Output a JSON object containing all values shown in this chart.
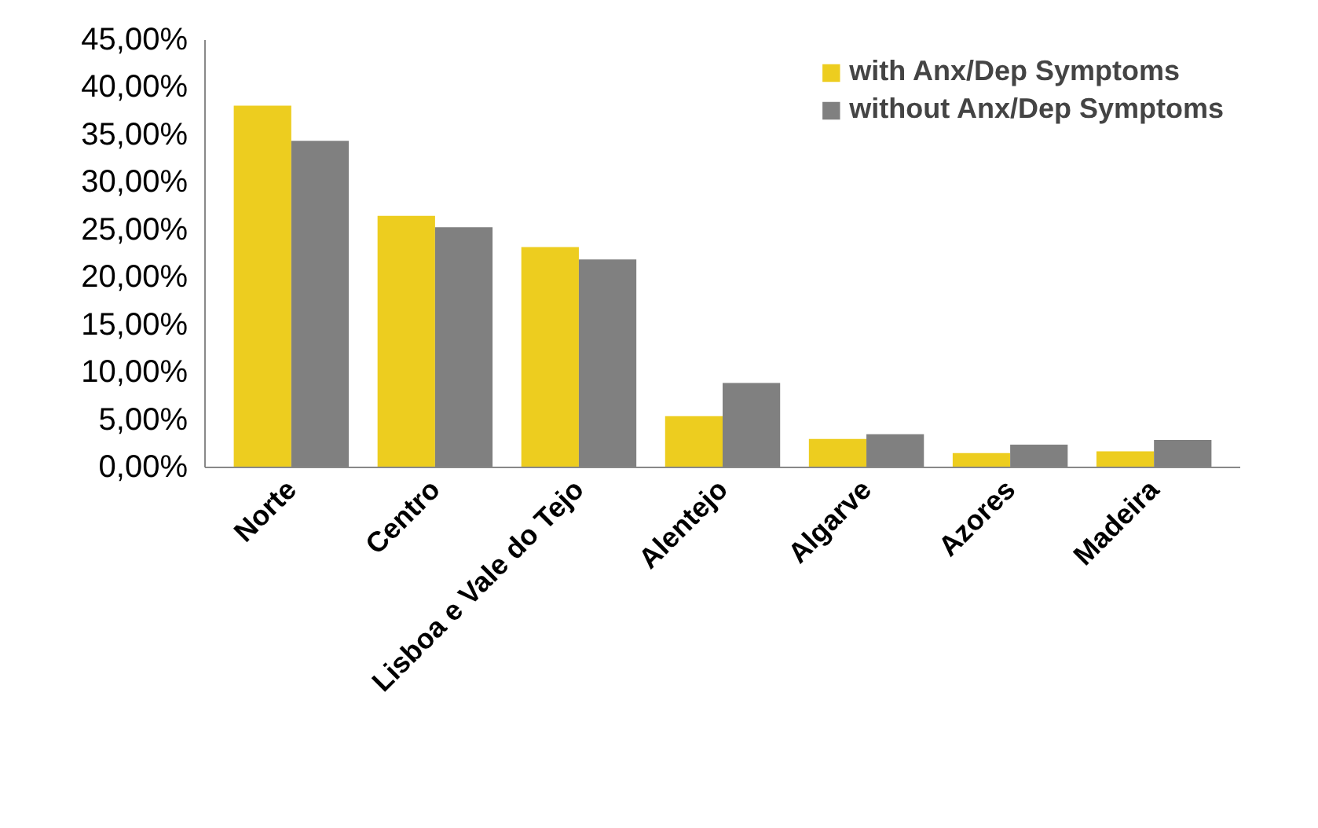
{
  "chart_data": {
    "type": "bar",
    "categories": [
      "Norte",
      "Centro",
      "Lisboa e Vale do Tejo",
      "Alentejo",
      "Algarve",
      "Azores",
      "Madeira"
    ],
    "series": [
      {
        "name": "with Anx/Dep Symptoms",
        "color": "#edcd1f",
        "values": [
          38.1,
          26.5,
          23.2,
          5.4,
          3.0,
          1.5,
          1.7
        ]
      },
      {
        "name": "without Anx/Dep Symptoms",
        "color": "#808080",
        "values": [
          34.4,
          25.3,
          21.9,
          8.9,
          3.5,
          2.4,
          2.9
        ]
      }
    ],
    "ylim": [
      0,
      45
    ],
    "yticks": [
      {
        "value": 0,
        "label": "0,00%"
      },
      {
        "value": 5,
        "label": "5,00%"
      },
      {
        "value": 10,
        "label": "10,00%"
      },
      {
        "value": 15,
        "label": "15,00%"
      },
      {
        "value": 20,
        "label": "20,00%"
      },
      {
        "value": 25,
        "label": "25,00%"
      },
      {
        "value": 30,
        "label": "30,00%"
      },
      {
        "value": 35,
        "label": "35,00%"
      },
      {
        "value": 40,
        "label": "40,00%"
      },
      {
        "value": 45,
        "label": "45,00%"
      }
    ],
    "grid": false,
    "legend": "top right"
  }
}
